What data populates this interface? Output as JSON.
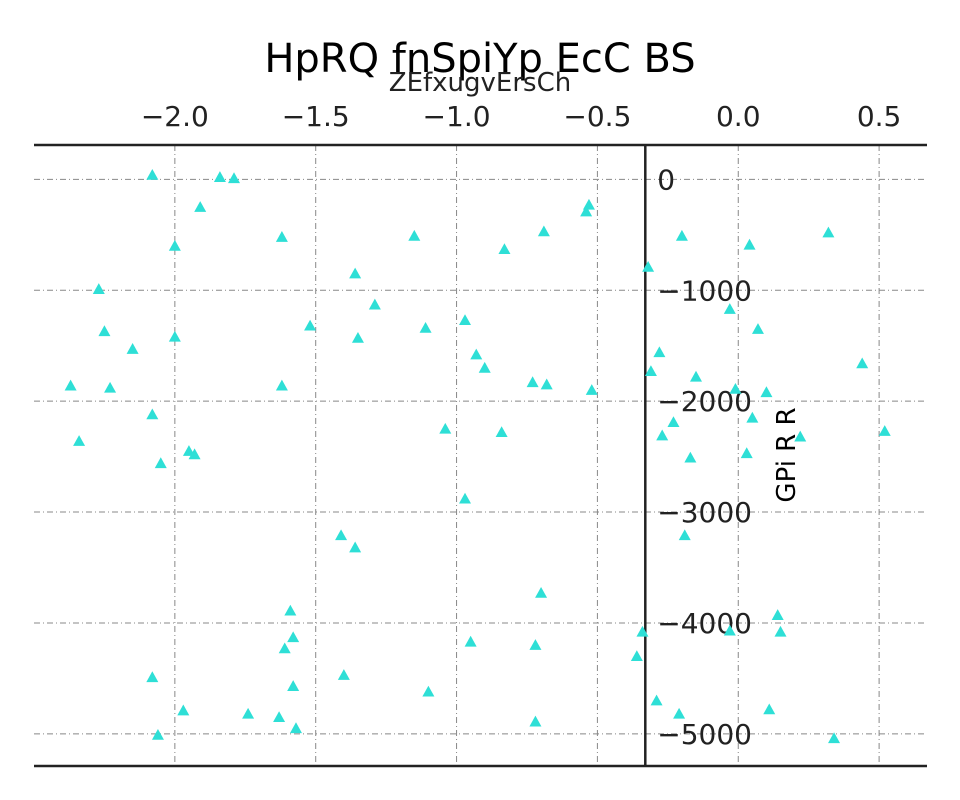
{
  "chart_data": {
    "type": "scatter",
    "title": "HpRQ fnSpiYp EcC BS",
    "xlabel": "ZEfxugvErsCh",
    "ylabel": "GPi R R",
    "xlim": [
      -2.5,
      0.67
    ],
    "ylim": [
      -5290,
      310
    ],
    "x_ticks": [
      -2.0,
      -1.5,
      -1.0,
      -0.5,
      0.0,
      0.5
    ],
    "x_tick_labels": [
      "−2.0",
      "−1.5",
      "−1.0",
      "−0.5",
      "0.0",
      "0.5"
    ],
    "y_ticks": [
      0,
      -1000,
      -2000,
      -3000,
      -4000,
      -5000
    ],
    "y_tick_labels": [
      "0",
      "−1000",
      "−2000",
      "−3000",
      "−4000",
      "−5000"
    ],
    "x_axis_position": "top",
    "y_axis_at_x": -0.33,
    "grid": true,
    "marker": "triangle",
    "color": "#2EDFD6",
    "points": [
      {
        "x": -2.08,
        "y": 40
      },
      {
        "x": -1.84,
        "y": 20
      },
      {
        "x": -1.79,
        "y": 10
      },
      {
        "x": -1.91,
        "y": -250
      },
      {
        "x": -2.0,
        "y": -600
      },
      {
        "x": -1.62,
        "y": -520
      },
      {
        "x": -2.27,
        "y": -990
      },
      {
        "x": -2.25,
        "y": -1370
      },
      {
        "x": -2.0,
        "y": -1420
      },
      {
        "x": -2.15,
        "y": -1530
      },
      {
        "x": -2.37,
        "y": -1860
      },
      {
        "x": -2.23,
        "y": -1880
      },
      {
        "x": -2.08,
        "y": -2120
      },
      {
        "x": -2.34,
        "y": -2360
      },
      {
        "x": -2.05,
        "y": -2560
      },
      {
        "x": -1.95,
        "y": -2450
      },
      {
        "x": -1.93,
        "y": -2480
      },
      {
        "x": -1.36,
        "y": -850
      },
      {
        "x": -1.29,
        "y": -1130
      },
      {
        "x": -1.52,
        "y": -1320
      },
      {
        "x": -1.35,
        "y": -1430
      },
      {
        "x": -1.62,
        "y": -1860
      },
      {
        "x": -1.15,
        "y": -510
      },
      {
        "x": -1.11,
        "y": -1340
      },
      {
        "x": -0.97,
        "y": -1270
      },
      {
        "x": -0.93,
        "y": -1580
      },
      {
        "x": -0.9,
        "y": -1700
      },
      {
        "x": -1.04,
        "y": -2250
      },
      {
        "x": -0.83,
        "y": -630
      },
      {
        "x": -0.69,
        "y": -470
      },
      {
        "x": -0.53,
        "y": -230
      },
      {
        "x": -0.54,
        "y": -290
      },
      {
        "x": -0.84,
        "y": -2280
      },
      {
        "x": -0.73,
        "y": -1830
      },
      {
        "x": -0.68,
        "y": -1850
      },
      {
        "x": -0.52,
        "y": -1900
      },
      {
        "x": -0.97,
        "y": -2880
      },
      {
        "x": -1.41,
        "y": -3210
      },
      {
        "x": -1.36,
        "y": -3320
      },
      {
        "x": -0.7,
        "y": -3730
      },
      {
        "x": -1.59,
        "y": -3890
      },
      {
        "x": -1.58,
        "y": -4130
      },
      {
        "x": -1.61,
        "y": -4230
      },
      {
        "x": -0.95,
        "y": -4170
      },
      {
        "x": -0.72,
        "y": -4200
      },
      {
        "x": -1.4,
        "y": -4470
      },
      {
        "x": -1.58,
        "y": -4570
      },
      {
        "x": -2.08,
        "y": -4490
      },
      {
        "x": -1.1,
        "y": -4620
      },
      {
        "x": -1.97,
        "y": -4790
      },
      {
        "x": -1.74,
        "y": -4820
      },
      {
        "x": -1.63,
        "y": -4850
      },
      {
        "x": -1.57,
        "y": -4950
      },
      {
        "x": -0.72,
        "y": -4890
      },
      {
        "x": -2.06,
        "y": -5010
      },
      {
        "x": -0.34,
        "y": -4080
      },
      {
        "x": -0.36,
        "y": -4300
      },
      {
        "x": -0.32,
        "y": -790
      },
      {
        "x": -0.31,
        "y": -1730
      },
      {
        "x": -0.29,
        "y": -4700
      },
      {
        "x": -0.28,
        "y": -1560
      },
      {
        "x": -0.27,
        "y": -2310
      },
      {
        "x": -0.23,
        "y": -2190
      },
      {
        "x": -0.2,
        "y": -510
      },
      {
        "x": -0.15,
        "y": -1780
      },
      {
        "x": -0.17,
        "y": -2510
      },
      {
        "x": -0.19,
        "y": -3210
      },
      {
        "x": -0.21,
        "y": -4820
      },
      {
        "x": 0.04,
        "y": -590
      },
      {
        "x": -0.03,
        "y": -1170
      },
      {
        "x": 0.07,
        "y": -1350
      },
      {
        "x": -0.01,
        "y": -1890
      },
      {
        "x": 0.1,
        "y": -1920
      },
      {
        "x": 0.05,
        "y": -2150
      },
      {
        "x": 0.03,
        "y": -2470
      },
      {
        "x": 0.22,
        "y": -2320
      },
      {
        "x": -0.03,
        "y": -4070
      },
      {
        "x": 0.14,
        "y": -3930
      },
      {
        "x": 0.15,
        "y": -4080
      },
      {
        "x": 0.11,
        "y": -4780
      },
      {
        "x": 0.32,
        "y": -480
      },
      {
        "x": 0.44,
        "y": -1660
      },
      {
        "x": 0.52,
        "y": -2270
      },
      {
        "x": 0.34,
        "y": -5040
      }
    ]
  }
}
